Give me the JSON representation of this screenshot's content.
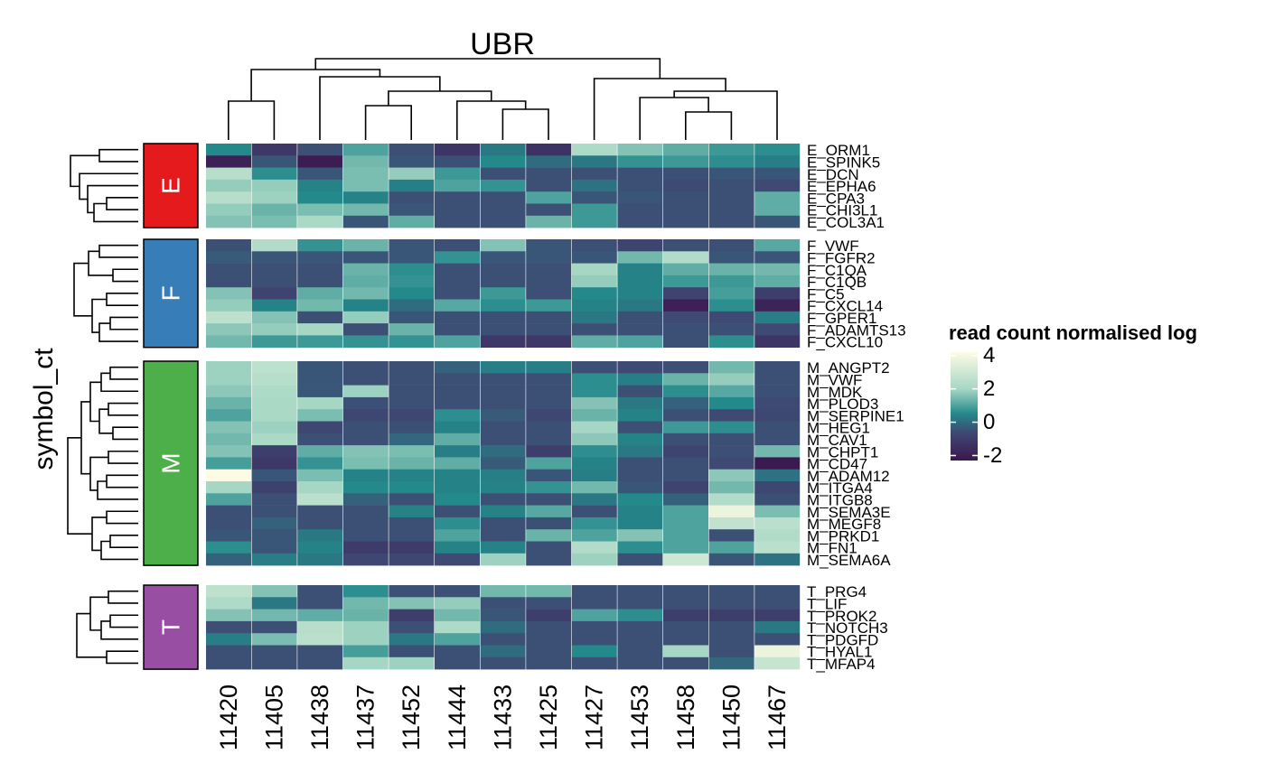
{
  "chart_data": {
    "type": "heatmap",
    "title": "UBR",
    "ylabel": "symbol_ct",
    "legend": {
      "title": "read count normalised log",
      "ticks": [
        4,
        2,
        0,
        -2
      ],
      "range": [
        -2.3,
        4.2
      ],
      "placement": "right",
      "colors": [
        "#3b1750",
        "#3e4a73",
        "#23898a",
        "#a6d7c5",
        "#fdfbe4"
      ]
    },
    "columns": [
      "11420",
      "11405",
      "11438",
      "11437",
      "11452",
      "11444",
      "11433",
      "11425",
      "11427",
      "11453",
      "11458",
      "11450",
      "11467"
    ],
    "groups": [
      {
        "label": "E",
        "color": "#e41a1c",
        "rows": [
          {
            "name": "E_ORM1",
            "values": [
              0.5,
              -1.2,
              -0.5,
              1.0,
              -0.5,
              -1.3,
              0.2,
              -1.4,
              2.2,
              1.6,
              1.2,
              0.8,
              0.6
            ]
          },
          {
            "name": "E_SPINK5",
            "values": [
              -2.0,
              -0.4,
              -2.1,
              1.4,
              -0.4,
              -0.5,
              0.5,
              0.0,
              0.2,
              0.7,
              0.8,
              0.6,
              0.3
            ]
          },
          {
            "name": "E_DCN",
            "values": [
              2.4,
              0.6,
              -0.4,
              1.5,
              1.8,
              0.8,
              -0.5,
              -0.5,
              -0.5,
              -0.5,
              -0.5,
              -0.4,
              -0.4
            ]
          },
          {
            "name": "E_EPHA6",
            "values": [
              1.8,
              1.8,
              0.4,
              1.5,
              0.3,
              1.0,
              0.7,
              -0.5,
              0.1,
              -0.5,
              -0.6,
              -0.5,
              -0.6
            ]
          },
          {
            "name": "E_CPA3",
            "values": [
              2.4,
              1.9,
              0.5,
              0.4,
              -0.5,
              -0.5,
              -0.5,
              1.0,
              -0.4,
              -0.4,
              -0.5,
              -0.5,
              1.2
            ]
          },
          {
            "name": "E_CHI3L1",
            "values": [
              1.8,
              1.3,
              1.5,
              1.4,
              -0.4,
              -0.5,
              -0.5,
              -0.5,
              0.8,
              -0.5,
              -0.5,
              -0.5,
              1.2
            ]
          },
          {
            "name": "E_COL3A1",
            "values": [
              1.6,
              1.5,
              2.1,
              -0.4,
              1.2,
              -0.5,
              -0.5,
              1.3,
              0.8,
              -0.5,
              -0.5,
              -0.5,
              -0.4
            ]
          }
        ]
      },
      {
        "label": "F",
        "color": "#377eb8",
        "rows": [
          {
            "name": "F_VWF",
            "values": [
              -0.5,
              2.3,
              0.7,
              1.3,
              -0.4,
              -0.5,
              1.6,
              -0.4,
              -0.5,
              -0.8,
              -0.5,
              -0.5,
              1.1
            ]
          },
          {
            "name": "F_FGFR2",
            "values": [
              -0.3,
              -0.4,
              -0.4,
              -0.4,
              -0.4,
              0.7,
              -0.4,
              -0.4,
              -0.4,
              1.4,
              2.3,
              -0.4,
              -0.4
            ]
          },
          {
            "name": "F_C1QA",
            "values": [
              -0.5,
              -0.5,
              -0.5,
              1.3,
              0.6,
              -0.5,
              -0.5,
              -0.5,
              2.0,
              0.4,
              1.2,
              1.3,
              1.4
            ]
          },
          {
            "name": "F_C1QB",
            "values": [
              -0.5,
              -0.5,
              -0.5,
              1.2,
              0.7,
              -0.5,
              -0.5,
              -0.5,
              1.8,
              0.4,
              0.8,
              0.8,
              1.2
            ]
          },
          {
            "name": "F_C5",
            "values": [
              1.6,
              -0.8,
              1.2,
              1.4,
              0.5,
              -0.5,
              0.8,
              -0.5,
              0.5,
              0.4,
              -0.8,
              0.9,
              -1.0
            ]
          },
          {
            "name": "F_CXCL14",
            "values": [
              1.8,
              0.4,
              1.4,
              0.4,
              0.0,
              1.1,
              0.6,
              0.8,
              0.4,
              0.2,
              -2.0,
              0.6,
              -1.9
            ]
          },
          {
            "name": "F_GPER1",
            "values": [
              2.6,
              1.6,
              -0.5,
              1.8,
              -0.4,
              -0.5,
              -0.5,
              -0.5,
              0.2,
              -0.5,
              -0.6,
              -0.6,
              0.3
            ]
          },
          {
            "name": "F_ADAMTS13",
            "values": [
              1.7,
              1.8,
              2.0,
              -0.5,
              1.3,
              -0.5,
              -0.5,
              -0.5,
              -0.5,
              -0.5,
              -0.5,
              -0.5,
              -0.6
            ]
          },
          {
            "name": "F_CXCL10",
            "values": [
              1.4,
              0.8,
              0.8,
              0.7,
              0.7,
              1.0,
              -1.2,
              -1.2,
              1.2,
              1.0,
              -0.5,
              0.6,
              -1.3
            ]
          }
        ]
      },
      {
        "label": "M",
        "color": "#4daf4a",
        "rows": [
          {
            "name": "M_ANGPT2",
            "values": [
              1.9,
              2.6,
              -0.4,
              -0.5,
              -0.5,
              -0.2,
              0.3,
              0.3,
              -0.5,
              -0.6,
              -0.5,
              1.4,
              -0.5
            ]
          },
          {
            "name": "M_VWF",
            "values": [
              1.9,
              2.4,
              -0.4,
              -0.5,
              -0.5,
              -0.5,
              -0.5,
              -0.5,
              0.6,
              0.3,
              1.3,
              1.8,
              -0.5
            ]
          },
          {
            "name": "M_MDK",
            "values": [
              1.7,
              2.2,
              -0.4,
              1.9,
              -0.5,
              -0.5,
              -0.5,
              -0.5,
              0.6,
              -0.5,
              0.6,
              1.1,
              -0.5
            ]
          },
          {
            "name": "M_PLOD3",
            "values": [
              1.3,
              2.1,
              2.0,
              -0.5,
              -0.5,
              -0.5,
              -0.5,
              -0.5,
              1.6,
              0.2,
              -0.2,
              0.5,
              -0.6
            ]
          },
          {
            "name": "M_SERPINE1",
            "values": [
              1.0,
              2.1,
              1.5,
              -0.7,
              -0.7,
              0.6,
              -0.3,
              -0.7,
              1.3,
              0.4,
              -0.5,
              -0.6,
              -0.7
            ]
          },
          {
            "name": "M_HEG1",
            "values": [
              1.6,
              1.9,
              -0.7,
              -0.5,
              -0.5,
              0.4,
              -0.5,
              -0.5,
              2.0,
              -0.5,
              0.8,
              0.6,
              -0.5
            ]
          },
          {
            "name": "M_CAV1",
            "values": [
              1.4,
              2.1,
              -0.5,
              -0.5,
              -0.1,
              1.2,
              -0.5,
              -0.5,
              1.7,
              0.4,
              -0.5,
              -0.5,
              -0.5
            ]
          },
          {
            "name": "M_CHPT1",
            "values": [
              1.6,
              -1.0,
              1.2,
              1.6,
              1.5,
              0.3,
              0.0,
              -1.0,
              0.6,
              0.2,
              -0.8,
              -0.5,
              1.4
            ]
          },
          {
            "name": "M_CD47",
            "values": [
              0.9,
              -1.2,
              0.7,
              1.5,
              1.3,
              1.2,
              -0.3,
              1.0,
              0.4,
              -0.5,
              -0.5,
              -0.6,
              -2.2
            ]
          },
          {
            "name": "M_ADAM12",
            "values": [
              4.2,
              -0.4,
              1.5,
              0.4,
              0.4,
              0.4,
              0.3,
              -0.4,
              0.3,
              -0.5,
              -0.5,
              1.7,
              0.1
            ]
          },
          {
            "name": "M_ITGA4",
            "values": [
              2.0,
              -0.9,
              2.0,
              0.5,
              0.5,
              0.4,
              0.4,
              0.7,
              1.4,
              -0.4,
              -0.8,
              1.4,
              -0.7
            ]
          },
          {
            "name": "M_ITGB8",
            "values": [
              1.0,
              -0.5,
              2.5,
              -0.2,
              -0.5,
              0.5,
              -0.5,
              -0.5,
              0.2,
              0.5,
              -0.2,
              2.3,
              -0.5
            ]
          },
          {
            "name": "M_SEMA3E",
            "values": [
              -0.5,
              -0.5,
              -0.5,
              -0.5,
              0.4,
              -0.5,
              0.4,
              1.1,
              -0.5,
              0.4,
              1.0,
              3.8,
              1.5
            ]
          },
          {
            "name": "M_MEGF8",
            "values": [
              -0.5,
              -0.2,
              -0.5,
              -0.5,
              -0.5,
              0.6,
              -0.5,
              -0.5,
              0.7,
              0.4,
              1.0,
              2.7,
              2.5
            ]
          },
          {
            "name": "M_PRKD1",
            "values": [
              -0.4,
              -0.4,
              0.2,
              -0.5,
              -0.5,
              1.0,
              -0.5,
              1.3,
              1.0,
              1.6,
              1.0,
              -0.5,
              2.3
            ]
          },
          {
            "name": "M_FN1",
            "values": [
              0.6,
              -0.4,
              0.4,
              -1.1,
              -1.1,
              0.4,
              0.4,
              -0.5,
              2.3,
              0.6,
              1.0,
              1.0,
              2.5
            ]
          },
          {
            "name": "M_SEMA6A",
            "values": [
              -0.2,
              0.3,
              0.2,
              -0.7,
              -0.7,
              -0.6,
              1.9,
              -0.5,
              1.9,
              -0.5,
              3.0,
              -0.4,
              0.1
            ]
          }
        ]
      },
      {
        "label": "T",
        "color": "#984ea3",
        "rows": [
          {
            "name": "T_PRG4",
            "values": [
              2.6,
              1.6,
              -0.5,
              0.6,
              -0.5,
              -0.5,
              1.4,
              1.4,
              -0.5,
              -0.5,
              -0.5,
              -0.5,
              -0.5
            ]
          },
          {
            "name": "T_LIF",
            "values": [
              2.2,
              0.2,
              -0.5,
              1.4,
              1.6,
              1.8,
              -0.5,
              -0.5,
              -0.5,
              -0.5,
              -0.5,
              -0.5,
              -0.5
            ]
          },
          {
            "name": "T_PROK2",
            "values": [
              1.6,
              1.4,
              1.2,
              1.3,
              -1.0,
              1.4,
              -0.4,
              -1.0,
              1.0,
              0.6,
              -1.0,
              -1.0,
              -1.0
            ]
          },
          {
            "name": "T_NOTCH3",
            "values": [
              -0.5,
              -0.5,
              2.4,
              1.9,
              -0.5,
              2.2,
              0.0,
              -0.5,
              -0.5,
              -0.5,
              -0.5,
              -0.5,
              0.2
            ]
          },
          {
            "name": "T_PDGFD",
            "values": [
              0.3,
              1.5,
              2.5,
              1.9,
              0.2,
              1.0,
              -0.5,
              -0.5,
              -0.5,
              -0.5,
              -0.5,
              -0.5,
              -0.5
            ]
          },
          {
            "name": "T_HYAL1",
            "values": [
              -0.5,
              -0.5,
              -0.5,
              0.9,
              -0.5,
              -0.5,
              0.0,
              -0.5,
              0.5,
              -0.5,
              2.0,
              -0.5,
              3.8
            ]
          },
          {
            "name": "T_MFAP4",
            "values": [
              -0.5,
              -0.5,
              -0.5,
              2.0,
              1.9,
              -0.5,
              -0.5,
              -0.5,
              -0.5,
              -0.5,
              -0.5,
              -0.1,
              2.8
            ]
          }
        ]
      }
    ]
  }
}
